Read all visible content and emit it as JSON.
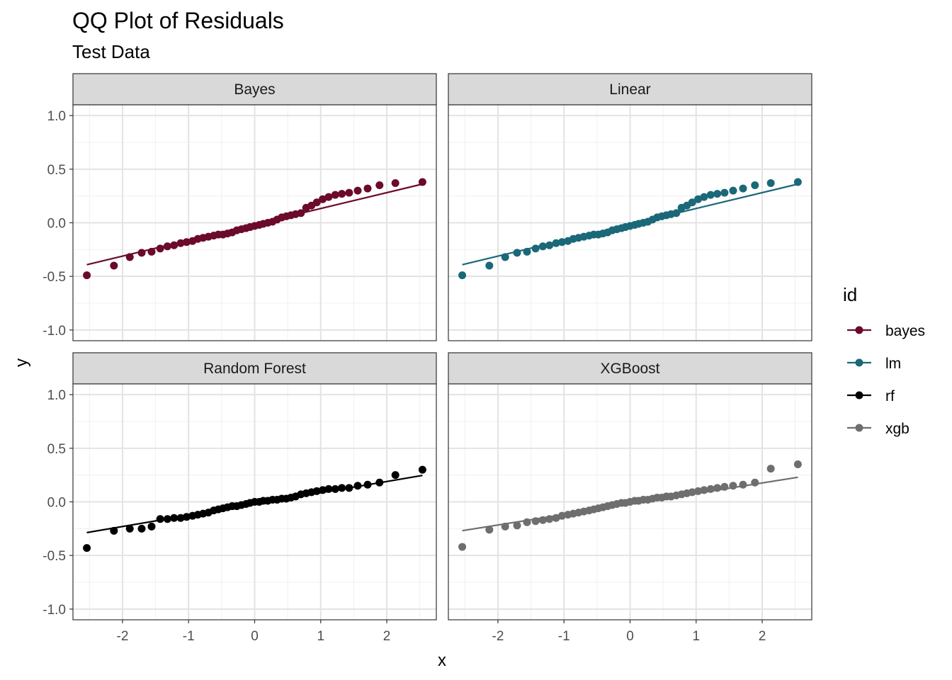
{
  "chart_data": {
    "type": "scatter",
    "title": "QQ Plot of Residuals",
    "subtitle": "Test Data",
    "xlabel": "x",
    "ylabel": "y",
    "xlim": [
      -2.75,
      2.75
    ],
    "ylim": [
      -1.1,
      1.1
    ],
    "x_ticks": [
      -2,
      -1,
      0,
      1,
      2
    ],
    "x_tick_labels": [
      "-2",
      "-1",
      "0",
      "1",
      "2"
    ],
    "y_ticks": [
      -1.0,
      -0.5,
      0.0,
      0.5,
      1.0
    ],
    "y_tick_labels": [
      "-1.0",
      "-0.5",
      "0.0",
      "0.5",
      "1.0"
    ],
    "grid": true,
    "legend": {
      "title": "id",
      "placement": "right",
      "entries": [
        {
          "label": "bayes",
          "color": "#6B0A2A"
        },
        {
          "label": "lm",
          "color": "#1A6878"
        },
        {
          "label": "rf",
          "color": "#000000"
        },
        {
          "label": "xgb",
          "color": "#6E6E6E"
        }
      ]
    },
    "facets": [
      {
        "label": "Bayes",
        "key": "bayes",
        "color": "#6B0A2A",
        "line": {
          "slope": 0.148,
          "intercept": -0.015
        },
        "points": [
          [
            -2.54,
            -0.49
          ],
          [
            -2.13,
            -0.4
          ],
          [
            -1.89,
            -0.32
          ],
          [
            -1.71,
            -0.28
          ],
          [
            -1.56,
            -0.27
          ],
          [
            -1.43,
            -0.24
          ],
          [
            -1.32,
            -0.22
          ],
          [
            -1.22,
            -0.21
          ],
          [
            -1.12,
            -0.19
          ],
          [
            -1.03,
            -0.18
          ],
          [
            -0.94,
            -0.17
          ],
          [
            -0.86,
            -0.15
          ],
          [
            -0.78,
            -0.14
          ],
          [
            -0.7,
            -0.13
          ],
          [
            -0.62,
            -0.12
          ],
          [
            -0.55,
            -0.11
          ],
          [
            -0.48,
            -0.11
          ],
          [
            -0.41,
            -0.1
          ],
          [
            -0.34,
            -0.09
          ],
          [
            -0.27,
            -0.07
          ],
          [
            -0.2,
            -0.06
          ],
          [
            -0.13,
            -0.05
          ],
          [
            -0.07,
            -0.04
          ],
          [
            0.0,
            -0.03
          ],
          [
            0.07,
            -0.02
          ],
          [
            0.13,
            -0.01
          ],
          [
            0.2,
            0.0
          ],
          [
            0.27,
            0.01
          ],
          [
            0.34,
            0.03
          ],
          [
            0.41,
            0.05
          ],
          [
            0.48,
            0.06
          ],
          [
            0.55,
            0.07
          ],
          [
            0.62,
            0.08
          ],
          [
            0.7,
            0.09
          ],
          [
            0.78,
            0.14
          ],
          [
            0.86,
            0.16
          ],
          [
            0.94,
            0.19
          ],
          [
            1.03,
            0.22
          ],
          [
            1.12,
            0.24
          ],
          [
            1.22,
            0.26
          ],
          [
            1.32,
            0.27
          ],
          [
            1.43,
            0.28
          ],
          [
            1.56,
            0.3
          ],
          [
            1.71,
            0.32
          ],
          [
            1.89,
            0.35
          ],
          [
            2.13,
            0.37
          ],
          [
            2.54,
            0.38
          ]
        ]
      },
      {
        "label": "Linear",
        "key": "lm",
        "color": "#1A6878",
        "line": {
          "slope": 0.148,
          "intercept": -0.015
        },
        "points": [
          [
            -2.54,
            -0.49
          ],
          [
            -2.13,
            -0.4
          ],
          [
            -1.89,
            -0.32
          ],
          [
            -1.71,
            -0.28
          ],
          [
            -1.56,
            -0.27
          ],
          [
            -1.43,
            -0.24
          ],
          [
            -1.32,
            -0.22
          ],
          [
            -1.22,
            -0.21
          ],
          [
            -1.12,
            -0.19
          ],
          [
            -1.03,
            -0.18
          ],
          [
            -0.94,
            -0.17
          ],
          [
            -0.86,
            -0.15
          ],
          [
            -0.78,
            -0.14
          ],
          [
            -0.7,
            -0.13
          ],
          [
            -0.62,
            -0.12
          ],
          [
            -0.55,
            -0.11
          ],
          [
            -0.48,
            -0.11
          ],
          [
            -0.41,
            -0.1
          ],
          [
            -0.34,
            -0.09
          ],
          [
            -0.27,
            -0.07
          ],
          [
            -0.2,
            -0.06
          ],
          [
            -0.13,
            -0.05
          ],
          [
            -0.07,
            -0.04
          ],
          [
            0.0,
            -0.03
          ],
          [
            0.07,
            -0.02
          ],
          [
            0.13,
            -0.01
          ],
          [
            0.2,
            0.0
          ],
          [
            0.27,
            0.01
          ],
          [
            0.34,
            0.03
          ],
          [
            0.41,
            0.05
          ],
          [
            0.48,
            0.06
          ],
          [
            0.55,
            0.07
          ],
          [
            0.62,
            0.08
          ],
          [
            0.7,
            0.09
          ],
          [
            0.78,
            0.14
          ],
          [
            0.86,
            0.16
          ],
          [
            0.94,
            0.19
          ],
          [
            1.03,
            0.22
          ],
          [
            1.12,
            0.24
          ],
          [
            1.22,
            0.26
          ],
          [
            1.32,
            0.27
          ],
          [
            1.43,
            0.28
          ],
          [
            1.56,
            0.3
          ],
          [
            1.71,
            0.32
          ],
          [
            1.89,
            0.35
          ],
          [
            2.13,
            0.37
          ],
          [
            2.54,
            0.38
          ]
        ]
      },
      {
        "label": "Random Forest",
        "key": "rf",
        "color": "#000000",
        "line": {
          "slope": 0.105,
          "intercept": -0.02
        },
        "points": [
          [
            -2.54,
            -0.43
          ],
          [
            -2.13,
            -0.27
          ],
          [
            -1.89,
            -0.25
          ],
          [
            -1.71,
            -0.25
          ],
          [
            -1.56,
            -0.23
          ],
          [
            -1.43,
            -0.16
          ],
          [
            -1.32,
            -0.16
          ],
          [
            -1.22,
            -0.15
          ],
          [
            -1.12,
            -0.15
          ],
          [
            -1.03,
            -0.14
          ],
          [
            -0.94,
            -0.13
          ],
          [
            -0.86,
            -0.12
          ],
          [
            -0.78,
            -0.11
          ],
          [
            -0.7,
            -0.1
          ],
          [
            -0.62,
            -0.08
          ],
          [
            -0.55,
            -0.07
          ],
          [
            -0.48,
            -0.06
          ],
          [
            -0.41,
            -0.05
          ],
          [
            -0.34,
            -0.04
          ],
          [
            -0.27,
            -0.04
          ],
          [
            -0.2,
            -0.03
          ],
          [
            -0.13,
            -0.02
          ],
          [
            -0.07,
            -0.01
          ],
          [
            0.0,
            0.0
          ],
          [
            0.07,
            0.0
          ],
          [
            0.13,
            0.01
          ],
          [
            0.2,
            0.01
          ],
          [
            0.27,
            0.02
          ],
          [
            0.34,
            0.02
          ],
          [
            0.41,
            0.03
          ],
          [
            0.48,
            0.03
          ],
          [
            0.55,
            0.04
          ],
          [
            0.62,
            0.05
          ],
          [
            0.7,
            0.07
          ],
          [
            0.78,
            0.08
          ],
          [
            0.86,
            0.09
          ],
          [
            0.94,
            0.1
          ],
          [
            1.03,
            0.11
          ],
          [
            1.12,
            0.12
          ],
          [
            1.22,
            0.12
          ],
          [
            1.32,
            0.13
          ],
          [
            1.43,
            0.13
          ],
          [
            1.56,
            0.15
          ],
          [
            1.71,
            0.16
          ],
          [
            1.89,
            0.18
          ],
          [
            2.13,
            0.25
          ],
          [
            2.54,
            0.3
          ]
        ]
      },
      {
        "label": "XGBoost",
        "key": "xgb",
        "color": "#6E6E6E",
        "line": {
          "slope": 0.098,
          "intercept": -0.02
        },
        "points": [
          [
            -2.54,
            -0.42
          ],
          [
            -2.13,
            -0.26
          ],
          [
            -1.89,
            -0.23
          ],
          [
            -1.71,
            -0.22
          ],
          [
            -1.56,
            -0.19
          ],
          [
            -1.43,
            -0.18
          ],
          [
            -1.32,
            -0.17
          ],
          [
            -1.22,
            -0.16
          ],
          [
            -1.12,
            -0.15
          ],
          [
            -1.03,
            -0.13
          ],
          [
            -0.94,
            -0.12
          ],
          [
            -0.86,
            -0.11
          ],
          [
            -0.78,
            -0.1
          ],
          [
            -0.7,
            -0.09
          ],
          [
            -0.62,
            -0.08
          ],
          [
            -0.55,
            -0.07
          ],
          [
            -0.48,
            -0.06
          ],
          [
            -0.41,
            -0.05
          ],
          [
            -0.34,
            -0.04
          ],
          [
            -0.27,
            -0.03
          ],
          [
            -0.2,
            -0.02
          ],
          [
            -0.13,
            -0.01
          ],
          [
            -0.07,
            -0.01
          ],
          [
            0.0,
            0.0
          ],
          [
            0.07,
            0.01
          ],
          [
            0.13,
            0.01
          ],
          [
            0.2,
            0.02
          ],
          [
            0.27,
            0.02
          ],
          [
            0.34,
            0.03
          ],
          [
            0.41,
            0.04
          ],
          [
            0.48,
            0.04
          ],
          [
            0.55,
            0.05
          ],
          [
            0.62,
            0.05
          ],
          [
            0.7,
            0.06
          ],
          [
            0.78,
            0.07
          ],
          [
            0.86,
            0.08
          ],
          [
            0.94,
            0.09
          ],
          [
            1.03,
            0.1
          ],
          [
            1.12,
            0.11
          ],
          [
            1.22,
            0.12
          ],
          [
            1.32,
            0.13
          ],
          [
            1.43,
            0.14
          ],
          [
            1.56,
            0.15
          ],
          [
            1.71,
            0.16
          ],
          [
            1.89,
            0.18
          ],
          [
            2.13,
            0.31
          ],
          [
            2.54,
            0.35
          ]
        ]
      }
    ]
  }
}
